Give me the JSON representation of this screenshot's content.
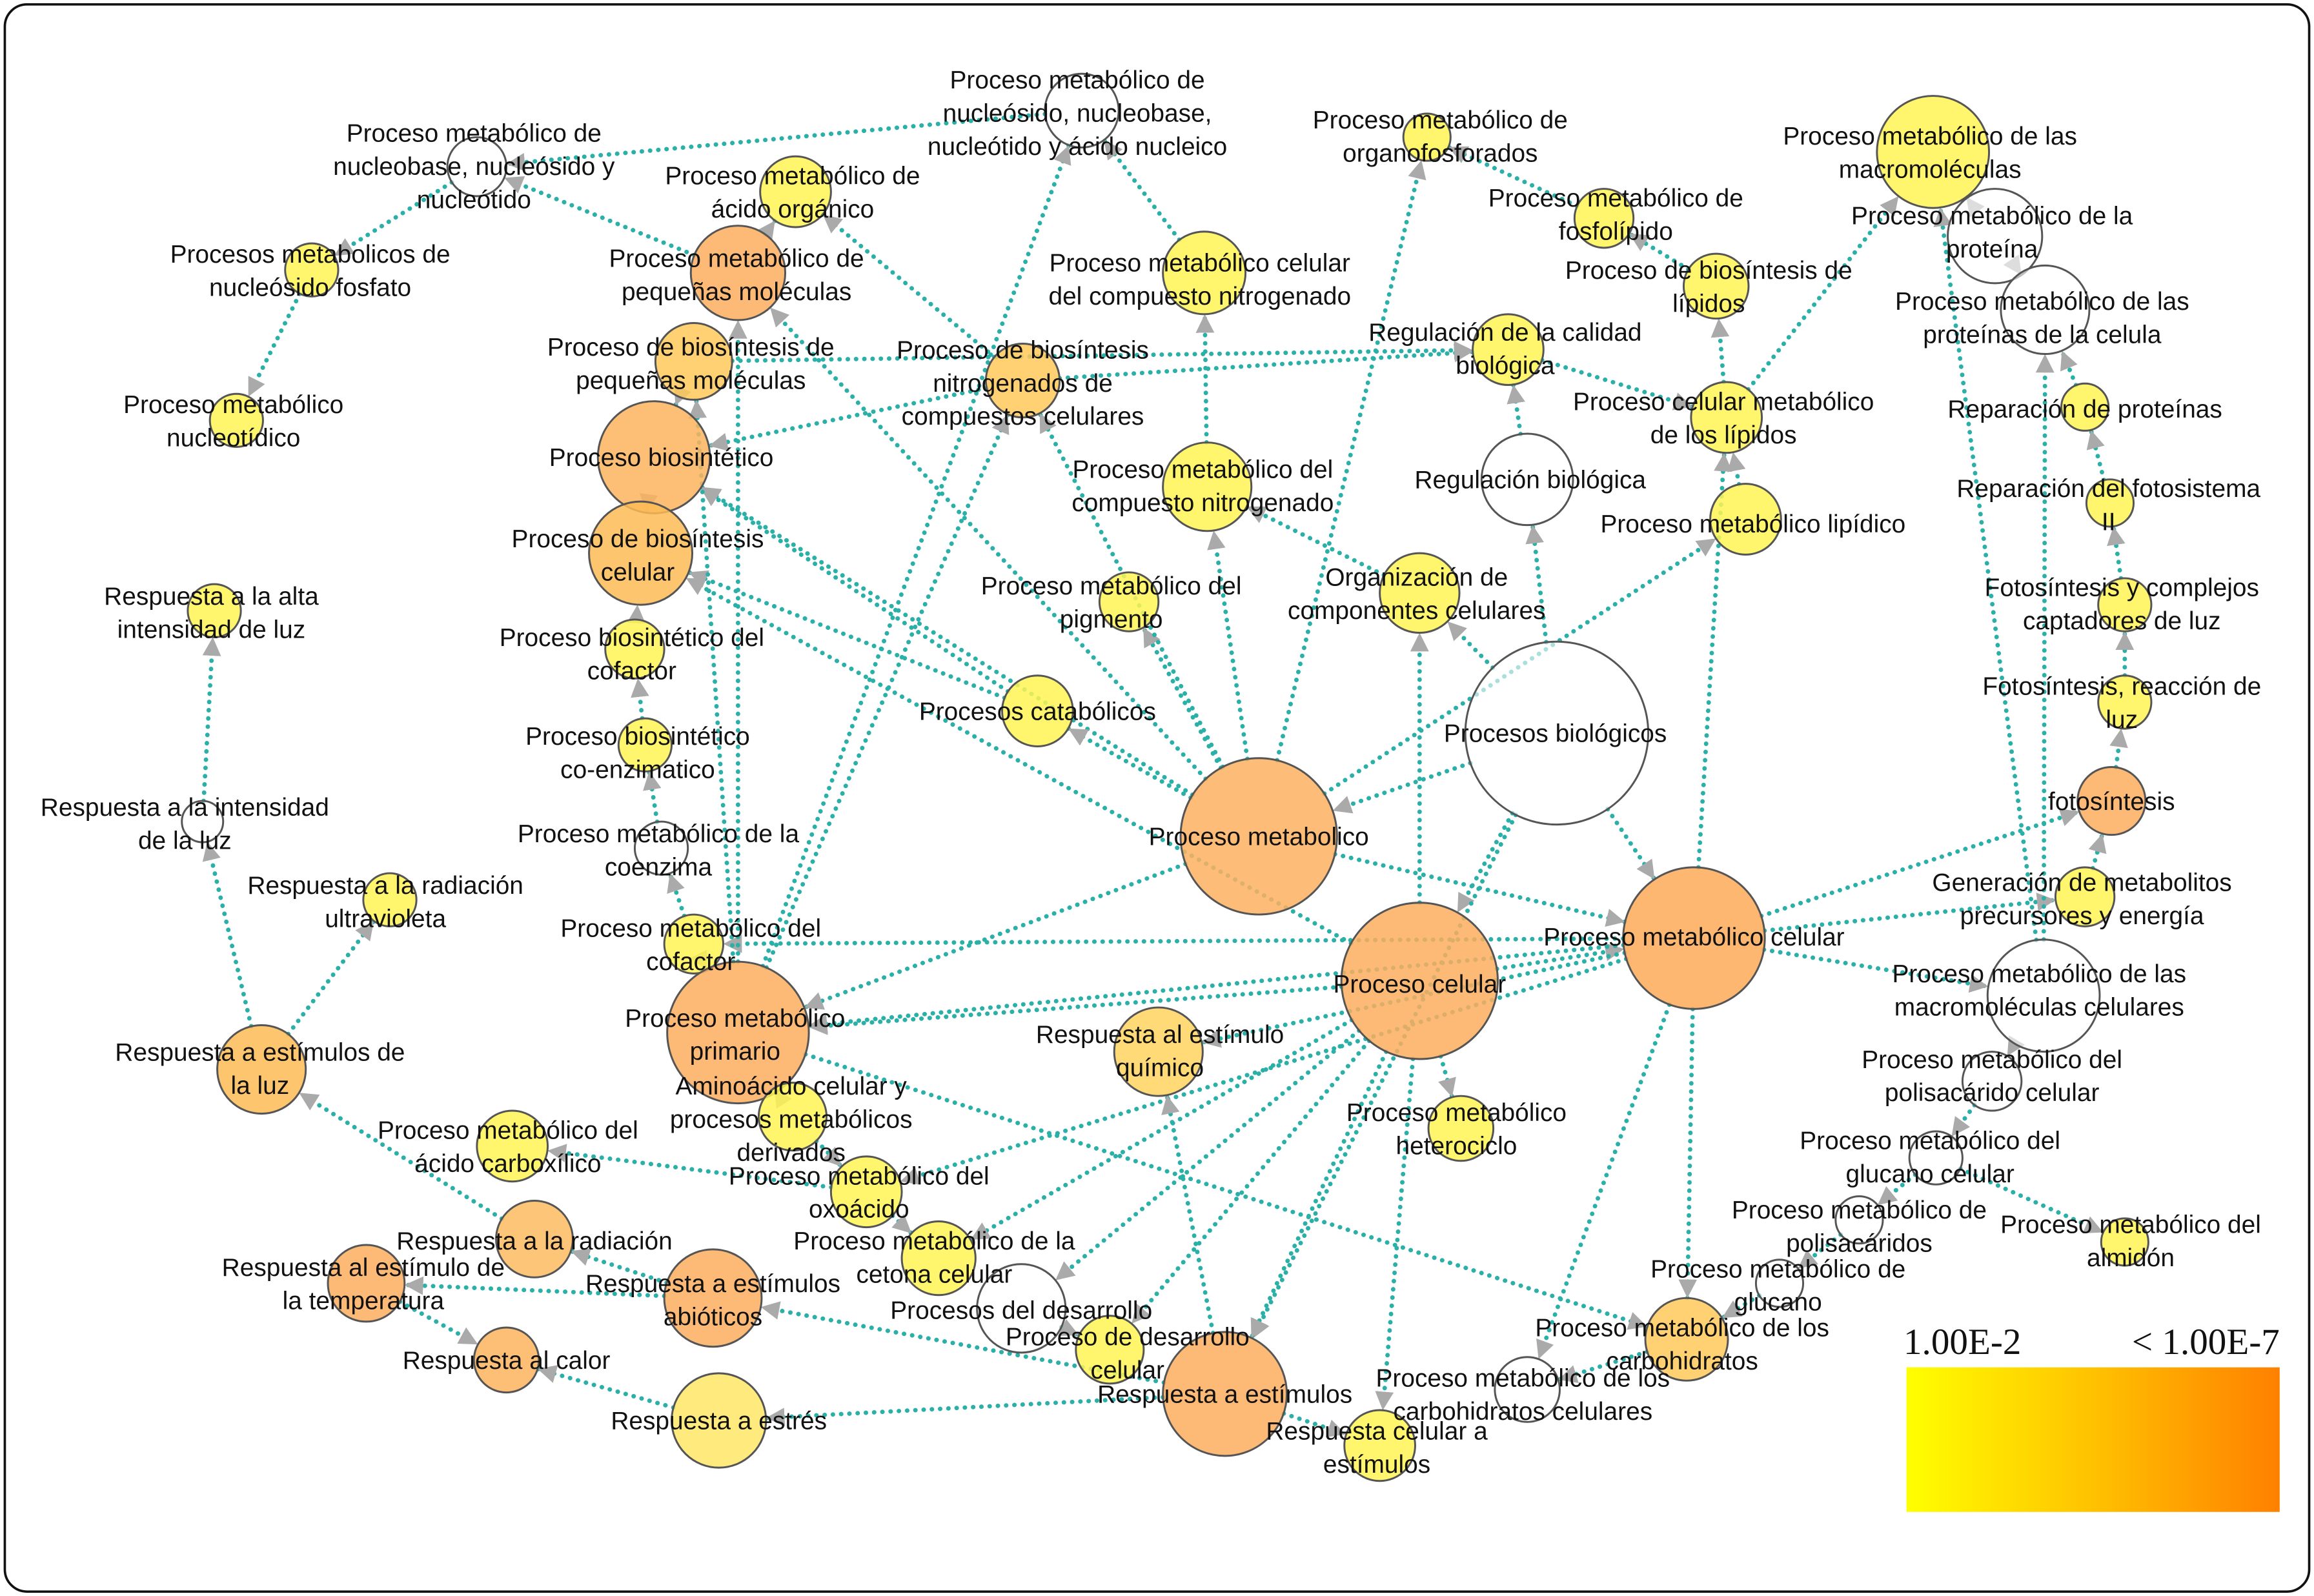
{
  "legend": {
    "min_label": "1.00E-2",
    "max_label": "< 1.00E-7",
    "color_low": "#ffff00",
    "color_high": "#ff8000"
  },
  "colors": {
    "edge": "#2bb0a8",
    "arrow": "#aaaaaa",
    "orange": "#fdae5e",
    "light_orange": "#ffc95a",
    "yellow": "#fff455",
    "white": "#ffffff"
  },
  "nodes": [
    {
      "id": 1,
      "label": [
        "Proceso metabólico de",
        "nucleósido, nucleobase,",
        "nucleótido y ácido nucleico"
      ],
      "fill": "#ffffff"
    },
    {
      "id": 2,
      "label": [
        "Proceso metabólico de",
        "nucleobase, nucleósido y",
        "nucleótido"
      ],
      "fill": "#ffffff"
    },
    {
      "id": 3,
      "label": [
        "Procesos metabolicos de",
        "nucleósido fosfato"
      ],
      "fill": "#fff455"
    },
    {
      "id": 4,
      "label": [
        "Proceso metabólico",
        "nucleotídico"
      ],
      "fill": "#fff455"
    },
    {
      "id": 5,
      "label": [
        "Proceso metabólico de",
        "ácido orgánico"
      ],
      "fill": "#fff455"
    },
    {
      "id": 6,
      "label": [
        "Proceso metabólico de",
        "pequeñas moléculas"
      ],
      "fill": "#fdae5e"
    },
    {
      "id": 7,
      "label": [
        "Proceso de biosíntesis de",
        "pequeñas moléculas"
      ],
      "fill": "#ffc95a"
    },
    {
      "id": 8,
      "label": [
        "Proceso biosintético"
      ],
      "fill": "#fdb45e"
    },
    {
      "id": 9,
      "label": [
        "Proceso de biosíntesis",
        "celular"
      ],
      "fill": "#fdbb55"
    },
    {
      "id": 10,
      "label": [
        "Proceso biosintético del",
        "cofactor"
      ],
      "fill": "#fff455"
    },
    {
      "id": 11,
      "label": [
        "Proceso biosintético",
        "co-enzimatico"
      ],
      "fill": "#fff455"
    },
    {
      "id": 12,
      "label": [
        "Proceso metabólico de la",
        "coenzima"
      ],
      "fill": "#ffffff"
    },
    {
      "id": 13,
      "label": [
        "Proceso metabólico del",
        "cofactor"
      ],
      "fill": "#fff455"
    },
    {
      "id": 14,
      "label": [
        "Proceso metabólico",
        "primario"
      ],
      "fill": "#fdae5e"
    },
    {
      "id": 15,
      "label": [
        "Aminoácido celular y",
        "procesos metabólicos",
        "derivados"
      ],
      "fill": "#fff455"
    },
    {
      "id": 16,
      "label": [
        "Proceso metabólico del",
        "ácido carboxílico"
      ],
      "fill": "#fff455"
    },
    {
      "id": 17,
      "label": [
        "Proceso metabólico del",
        "oxoácido"
      ],
      "fill": "#fff455"
    },
    {
      "id": 18,
      "label": [
        "Proceso metabólico de la",
        "cetona celular"
      ],
      "fill": "#fff455"
    },
    {
      "id": 19,
      "label": [
        "Procesos del desarrollo"
      ],
      "fill": "#ffffff"
    },
    {
      "id": 20,
      "label": [
        "Proceso de desarrollo",
        "celular"
      ],
      "fill": "#fff455"
    },
    {
      "id": 21,
      "label": [
        "Respuesta a estímulos"
      ],
      "fill": "#fdae5e"
    },
    {
      "id": 22,
      "label": [
        "Respuesta celular a",
        "estímulos"
      ],
      "fill": "#fff455"
    },
    {
      "id": 23,
      "label": [
        "Respuesta a estrés"
      ],
      "fill": "#ffe866"
    },
    {
      "id": 24,
      "label": [
        "Respuesta al calor"
      ],
      "fill": "#fdb45e"
    },
    {
      "id": 25,
      "label": [
        "Respuesta al estímulo de",
        "la temperatura"
      ],
      "fill": "#fdae5e"
    },
    {
      "id": 26,
      "label": [
        "Respuesta a la radiación"
      ],
      "fill": "#fdbb60"
    },
    {
      "id": 27,
      "label": [
        "Respuesta a estímulos",
        "abióticos"
      ],
      "fill": "#fdae5e"
    },
    {
      "id": 28,
      "label": [
        "Respuesta a estímulos de",
        "la luz"
      ],
      "fill": "#fdbb55"
    },
    {
      "id": 29,
      "label": [
        "Respuesta a la radiación",
        "ultravioleta"
      ],
      "fill": "#fff455"
    },
    {
      "id": 30,
      "label": [
        "Respuesta a la intensidad",
        "de la luz"
      ],
      "fill": "#ffffff"
    },
    {
      "id": 31,
      "label": [
        "Respuesta a la alta",
        "intensidad de luz"
      ],
      "fill": "#fff455"
    },
    {
      "id": 32,
      "label": [
        "Respuesta al estímulo",
        "químico"
      ],
      "fill": "#ffd35e"
    },
    {
      "id": 33,
      "label": [
        "Proceso celular"
      ],
      "fill": "#fdae5e"
    },
    {
      "id": 34,
      "label": [
        "Proceso metabolico"
      ],
      "fill": "#fdb060"
    },
    {
      "id": 35,
      "label": [
        "Procesos biológicos"
      ],
      "fill": "#ffffff"
    },
    {
      "id": 36,
      "label": [
        "Proceso metabólico celular"
      ],
      "fill": "#fdaa58"
    },
    {
      "id": 37,
      "label": [
        "Procesos catabólicos"
      ],
      "fill": "#fff455"
    },
    {
      "id": 38,
      "label": [
        "Proceso metabólico del",
        "pigmento"
      ],
      "fill": "#fff455"
    },
    {
      "id": 39,
      "label": [
        "Proceso metabólico del",
        "compuesto nitrogenado"
      ],
      "fill": "#fff455"
    },
    {
      "id": 40,
      "label": [
        "Proceso metabólico celular",
        "del compuesto nitrogenado"
      ],
      "fill": "#fff455"
    },
    {
      "id": 41,
      "label": [
        "Proceso de biosíntesis",
        "nitrogenados de",
        "compuestos celulares"
      ],
      "fill": "#ffc95a"
    },
    {
      "id": 42,
      "label": [
        "Organización de",
        "componentes celulares"
      ],
      "fill": "#fff455"
    },
    {
      "id": 43,
      "label": [
        "Regulación biológica"
      ],
      "fill": "#ffffff"
    },
    {
      "id": 44,
      "label": [
        "Regulación de la calidad",
        "biológica"
      ],
      "fill": "#fff455"
    },
    {
      "id": 45,
      "label": [
        "Proceso metabólico de",
        "organofosforados"
      ],
      "fill": "#fff455"
    },
    {
      "id": 46,
      "label": [
        "Proceso metabólico de",
        "fosfolípido"
      ],
      "fill": "#fff455"
    },
    {
      "id": 47,
      "label": [
        "Proceso de biosíntesis de",
        "lípidos"
      ],
      "fill": "#fff455"
    },
    {
      "id": 48,
      "label": [
        "Proceso celular metabólico",
        "de los lípidos"
      ],
      "fill": "#fff455"
    },
    {
      "id": 49,
      "label": [
        "Proceso metabólico lipídico"
      ],
      "fill": "#fff455"
    },
    {
      "id": 50,
      "label": [
        "Proceso metabólico de las",
        "macromoléculas"
      ],
      "fill": "#fff455"
    },
    {
      "id": 51,
      "label": [
        "Proceso metabólico de la",
        "proteína"
      ],
      "fill": "#ffffff"
    },
    {
      "id": 52,
      "label": [
        "Proceso metabólico de las",
        "proteínas de la celula"
      ],
      "fill": "#ffffff"
    },
    {
      "id": 53,
      "label": [
        "Reparación de proteínas"
      ],
      "fill": "#fff455"
    },
    {
      "id": 54,
      "label": [
        "Reparación del fotosistema",
        "II"
      ],
      "fill": "#fff455"
    },
    {
      "id": 55,
      "label": [
        "Fotosíntesis y complejos",
        "captadores de luz"
      ],
      "fill": "#fff455"
    },
    {
      "id": 56,
      "label": [
        "Fotosíntesis, reacción de",
        "luz"
      ],
      "fill": "#fff455"
    },
    {
      "id": 57,
      "label": [
        "fotosíntesis"
      ],
      "fill": "#fdae5e"
    },
    {
      "id": 58,
      "label": [
        "Generación de metabolitos",
        "precursores y energía"
      ],
      "fill": "#fff455"
    },
    {
      "id": 59,
      "label": [
        "Proceso metabólico de las",
        "macromoléculas celulares"
      ],
      "fill": "#ffffff"
    },
    {
      "id": 60,
      "label": [
        "Proceso metabólico del",
        "polisacárido celular"
      ],
      "fill": "#ffffff"
    },
    {
      "id": 61,
      "label": [
        "Proceso metabólico del",
        "glucano celular"
      ],
      "fill": "#ffffff"
    },
    {
      "id": 62,
      "label": [
        "Proceso metabólico del",
        "almidón"
      ],
      "fill": "#fff455"
    },
    {
      "id": 63,
      "label": [
        "Proceso metabólico de",
        "polisacáridos"
      ],
      "fill": "#ffffff"
    },
    {
      "id": 64,
      "label": [
        "Proceso metabólico de",
        "glucano"
      ],
      "fill": "#ffffff"
    },
    {
      "id": 65,
      "label": [
        "Proceso metabólico de los",
        "carbohidratos"
      ],
      "fill": "#ffc95a"
    },
    {
      "id": 66,
      "label": [
        "Proceso metabólico de los",
        "carbohidratos celulares"
      ],
      "fill": "#ffffff"
    },
    {
      "id": 67,
      "label": [
        "Proceso metabólico",
        "heterociclo"
      ],
      "fill": "#fff455"
    }
  ],
  "edges": [
    [
      35,
      34
    ],
    [
      35,
      33
    ],
    [
      35,
      43
    ],
    [
      35,
      42
    ],
    [
      35,
      36
    ],
    [
      35,
      21
    ],
    [
      34,
      36
    ],
    [
      34,
      8
    ],
    [
      34,
      37
    ],
    [
      34,
      38
    ],
    [
      34,
      39
    ],
    [
      34,
      45
    ],
    [
      34,
      49
    ],
    [
      34,
      14
    ],
    [
      34,
      6
    ],
    [
      34,
      41
    ],
    [
      33,
      36
    ],
    [
      33,
      67
    ],
    [
      33,
      9
    ],
    [
      33,
      14
    ],
    [
      33,
      18
    ],
    [
      33,
      21
    ],
    [
      33,
      20
    ],
    [
      33,
      22
    ],
    [
      33,
      42
    ],
    [
      33,
      19
    ],
    [
      36,
      48
    ],
    [
      36,
      59
    ],
    [
      36,
      57
    ],
    [
      36,
      58
    ],
    [
      36,
      14
    ],
    [
      36,
      65
    ],
    [
      36,
      66
    ],
    [
      36,
      32
    ],
    [
      36,
      17
    ],
    [
      36,
      13
    ],
    [
      37,
      9
    ],
    [
      37,
      8
    ],
    [
      41,
      8
    ],
    [
      39,
      40
    ],
    [
      40,
      1
    ],
    [
      1,
      2
    ],
    [
      2,
      3
    ],
    [
      3,
      4
    ],
    [
      6,
      2
    ],
    [
      6,
      5
    ],
    [
      41,
      5
    ],
    [
      14,
      6
    ],
    [
      14,
      7
    ],
    [
      7,
      8
    ],
    [
      9,
      8
    ],
    [
      10,
      9
    ],
    [
      11,
      10
    ],
    [
      12,
      11
    ],
    [
      13,
      12
    ],
    [
      14,
      13
    ],
    [
      14,
      15
    ],
    [
      15,
      17
    ],
    [
      17,
      18
    ],
    [
      17,
      16
    ],
    [
      28,
      29
    ],
    [
      28,
      30
    ],
    [
      30,
      31
    ],
    [
      26,
      28
    ],
    [
      27,
      26
    ],
    [
      27,
      25
    ],
    [
      25,
      24
    ],
    [
      23,
      24
    ],
    [
      21,
      23
    ],
    [
      21,
      27
    ],
    [
      21,
      22
    ],
    [
      19,
      20
    ],
    [
      21,
      32
    ],
    [
      43,
      44
    ],
    [
      48,
      47
    ],
    [
      47,
      46
    ],
    [
      46,
      45
    ],
    [
      49,
      48
    ],
    [
      48,
      50
    ],
    [
      51,
      50
    ],
    [
      52,
      51
    ],
    [
      53,
      52
    ],
    [
      54,
      53
    ],
    [
      55,
      54
    ],
    [
      56,
      55
    ],
    [
      57,
      56
    ],
    [
      58,
      57
    ],
    [
      59,
      52
    ],
    [
      59,
      60
    ],
    [
      60,
      61
    ],
    [
      61,
      63
    ],
    [
      61,
      62
    ],
    [
      63,
      64
    ],
    [
      64,
      65
    ],
    [
      65,
      66
    ],
    [
      14,
      65
    ],
    [
      59,
      50
    ],
    [
      42,
      39
    ],
    [
      41,
      44
    ],
    [
      7,
      44
    ],
    [
      14,
      1
    ],
    [
      14,
      41
    ],
    [
      44,
      48
    ]
  ]
}
